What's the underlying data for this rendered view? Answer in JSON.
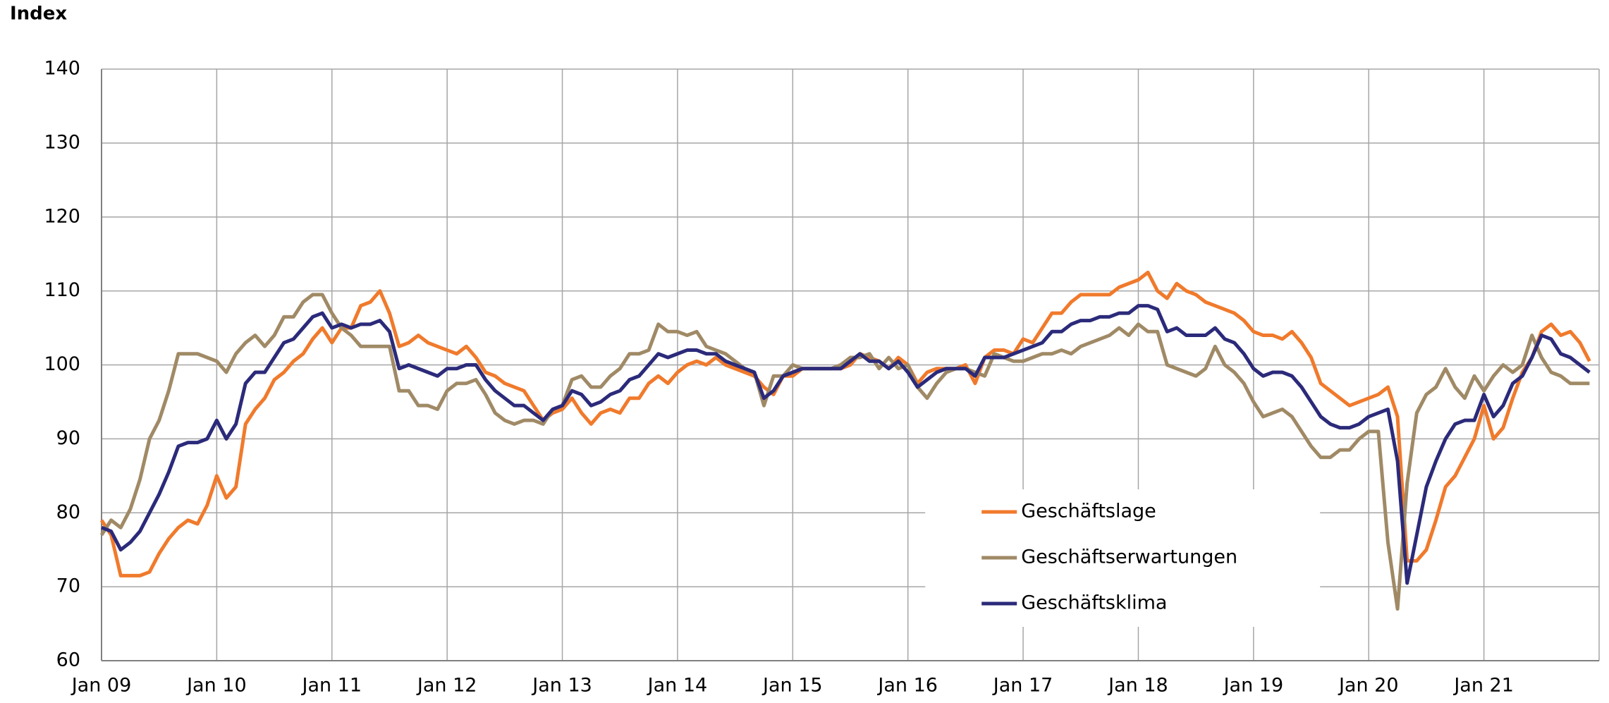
{
  "chart_data": {
    "type": "line",
    "ylabel": "Index",
    "categories": [
      "Jan 09",
      null,
      null,
      null,
      null,
      null,
      null,
      null,
      null,
      null,
      null,
      null,
      "Jan 10",
      null,
      null,
      null,
      null,
      null,
      null,
      null,
      null,
      null,
      null,
      null,
      "Jan 11",
      null,
      null,
      null,
      null,
      null,
      null,
      null,
      null,
      null,
      null,
      null,
      "Jan 12",
      null,
      null,
      null,
      null,
      null,
      null,
      null,
      null,
      null,
      null,
      null,
      "Jan 13",
      null,
      null,
      null,
      null,
      null,
      null,
      null,
      null,
      null,
      null,
      null,
      "Jan 14",
      null,
      null,
      null,
      null,
      null,
      null,
      null,
      null,
      null,
      null,
      null,
      "Jan 15",
      null,
      null,
      null,
      null,
      null,
      null,
      null,
      null,
      null,
      null,
      null,
      "Jan 16",
      null,
      null,
      null,
      null,
      null,
      null,
      null,
      null,
      null,
      null,
      null,
      "Jan 17",
      null,
      null,
      null,
      null,
      null,
      null,
      null,
      null,
      null,
      null,
      null,
      "Jan 18",
      null,
      null,
      null,
      null,
      null,
      null,
      null,
      null,
      null,
      null,
      null,
      "Jan 19",
      null,
      null,
      null,
      null,
      null,
      null,
      null,
      null,
      null,
      null,
      null,
      "Jan 20",
      null,
      null,
      null,
      null,
      null,
      null,
      null,
      null,
      null,
      null,
      null,
      "Jan 21",
      null,
      null,
      null,
      null,
      null,
      null,
      null,
      null,
      null,
      null,
      null
    ],
    "series": [
      {
        "name": "Geschäftslage",
        "color": "#f07a2c",
        "values": [
          79,
          77,
          71.5,
          71.5,
          71.5,
          72,
          74.5,
          76.5,
          78,
          79,
          78.5,
          81,
          85,
          82,
          83.5,
          92,
          94,
          95.5,
          98,
          99,
          100.5,
          101.5,
          103.5,
          105,
          103,
          105,
          105,
          108,
          108.5,
          110,
          107,
          102.5,
          103,
          104,
          103,
          102.5,
          102,
          101.5,
          102.5,
          101,
          99,
          98.5,
          97.5,
          97,
          96.5,
          94.5,
          92.5,
          93.5,
          94,
          95.5,
          93.5,
          92,
          93.5,
          94,
          93.5,
          95.5,
          95.5,
          97.5,
          98.5,
          97.5,
          99,
          100,
          100.5,
          100,
          101,
          100,
          99.5,
          99,
          98.5,
          97,
          96,
          98.5,
          98.5,
          99.5,
          99.5,
          99.5,
          99.5,
          99.5,
          100,
          101.5,
          101,
          100.5,
          99.5,
          101,
          100,
          97.5,
          99,
          99.5,
          99.5,
          99.5,
          100,
          97.5,
          101,
          102,
          102,
          101.5,
          103.5,
          103,
          105,
          107,
          107,
          108.5,
          109.5,
          109.5,
          109.5,
          109.5,
          110.5,
          111,
          111.5,
          112.5,
          110,
          109,
          111,
          110,
          109.5,
          108.5,
          108,
          107.5,
          107,
          106,
          104.5,
          104,
          104,
          103.5,
          104.5,
          103,
          101,
          97.5,
          96.5,
          95.5,
          94.5,
          95,
          95.5,
          96,
          97,
          93,
          73.5,
          73.5,
          75,
          79,
          83.5,
          85,
          87.5,
          90,
          94.5,
          90,
          91.5,
          95.5,
          99,
          101,
          104.5,
          105.5,
          104,
          104.5,
          103,
          100.5
        ]
      },
      {
        "name": "Geschäftserwartungen",
        "color": "#a08a66",
        "values": [
          77,
          79,
          78,
          80.5,
          84.5,
          90,
          92.5,
          96.5,
          101.5,
          101.5,
          101.5,
          101,
          100.5,
          99,
          101.5,
          103,
          104,
          102.5,
          104,
          106.5,
          106.5,
          108.5,
          109.5,
          109.5,
          107,
          105,
          104,
          102.5,
          102.5,
          102.5,
          102.5,
          96.5,
          96.5,
          94.5,
          94.5,
          94,
          96.5,
          97.5,
          97.5,
          98,
          96,
          93.5,
          92.5,
          92,
          92.5,
          92.5,
          92,
          94,
          94.5,
          98,
          98.5,
          97,
          97,
          98.5,
          99.5,
          101.5,
          101.5,
          102,
          105.5,
          104.5,
          104.5,
          104,
          104.5,
          102.5,
          102,
          101.5,
          100.5,
          99.5,
          99,
          94.5,
          98.5,
          98.5,
          100,
          99.5,
          99.5,
          99.5,
          99.5,
          100,
          101,
          101,
          101.5,
          99.5,
          101,
          99.5,
          100,
          97,
          95.5,
          97.5,
          99,
          99.5,
          99.5,
          99,
          98.5,
          101.5,
          101,
          100.5,
          100.5,
          101,
          101.5,
          101.5,
          102,
          101.5,
          102.5,
          103,
          103.5,
          104,
          105,
          104,
          105.5,
          104.5,
          104.5,
          100,
          99.5,
          99,
          98.5,
          99.5,
          102.5,
          100,
          99,
          97.5,
          95,
          93,
          93.5,
          94,
          93,
          91,
          89,
          87.5,
          87.5,
          88.5,
          88.5,
          90,
          91,
          91,
          76,
          67,
          84,
          93.5,
          96,
          97,
          99.5,
          97,
          95.5,
          98.5,
          96.5,
          98.5,
          100,
          99,
          100,
          104,
          101,
          99,
          98.5,
          97.5,
          97.5,
          97.5
        ]
      },
      {
        "name": "Geschäftsklima",
        "color": "#2b2a7a",
        "values": [
          78,
          77.5,
          75,
          76,
          77.5,
          80,
          82.5,
          85.5,
          89,
          89.5,
          89.5,
          90,
          92.5,
          90,
          92,
          97.5,
          99,
          99,
          101,
          103,
          103.5,
          105,
          106.5,
          107,
          105,
          105.5,
          105,
          105.5,
          105.5,
          106,
          104.5,
          99.5,
          100,
          99.5,
          99,
          98.5,
          99.5,
          99.5,
          100,
          100,
          98,
          96.5,
          95.5,
          94.5,
          94.5,
          93.5,
          92.5,
          94,
          94.5,
          96.5,
          96,
          94.5,
          95,
          96,
          96.5,
          98,
          98.5,
          100,
          101.5,
          101,
          101.5,
          102,
          102,
          101.5,
          101.5,
          100.5,
          100,
          99.5,
          99,
          95.5,
          96.5,
          98.5,
          99,
          99.5,
          99.5,
          99.5,
          99.5,
          99.5,
          100.5,
          101.5,
          100.5,
          100.5,
          99.5,
          100.5,
          99,
          97,
          98,
          99,
          99.5,
          99.5,
          99.5,
          98.5,
          101,
          101,
          101,
          101.5,
          102,
          102.5,
          103,
          104.5,
          104.5,
          105.5,
          106,
          106,
          106.5,
          106.5,
          107,
          107,
          108,
          108,
          107.5,
          104.5,
          105,
          104,
          104,
          104,
          105,
          103.5,
          103,
          101.5,
          99.5,
          98.5,
          99,
          99,
          98.5,
          97,
          95,
          93,
          92,
          91.5,
          91.5,
          92,
          93,
          93.5,
          94,
          87,
          70.5,
          77,
          83.5,
          87,
          90,
          92,
          92.5,
          92.5,
          96,
          93,
          94.5,
          97.5,
          98.5,
          101,
          104,
          103.5,
          101.5,
          101,
          100,
          99
        ]
      }
    ],
    "ylim": [
      60,
      140
    ],
    "yticks": [
      60,
      70,
      80,
      90,
      100,
      110,
      120,
      130,
      140
    ],
    "grid": true,
    "legend": "lower center"
  }
}
